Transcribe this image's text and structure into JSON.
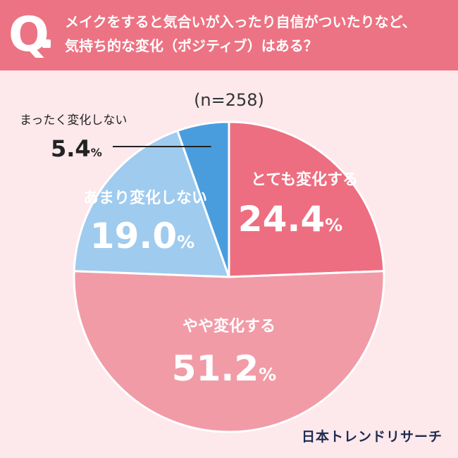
{
  "header": {
    "q_mark": "Q",
    "question_line1": "メイクをすると気合いが入ったり自信がついたりなど、",
    "question_line2": "気持ち的な変化（ポジティブ）はある？"
  },
  "sample_label": "(n=258)",
  "brand_logo": "日本トレンドリサーチ",
  "colors": {
    "background": "#fde8ec",
    "header": "#ec7383",
    "very_changed": "#ed6e80",
    "somewhat_changed": "#f19ba7",
    "not_much": "#9fcbee",
    "no_change": "#4a9ddd"
  },
  "chart_data": {
    "type": "pie",
    "title": "",
    "start_angle_deg": 0,
    "direction": "clockwise",
    "slices": [
      {
        "label": "とても変化する",
        "value": 24.4,
        "display": "24.4",
        "unit": "%",
        "color": "#ed6e80"
      },
      {
        "label": "やや変化する",
        "value": 51.2,
        "display": "51.2",
        "unit": "%",
        "color": "#f19ba7"
      },
      {
        "label": "あまり変化しない",
        "value": 19.0,
        "display": "19.0",
        "unit": "%",
        "color": "#9fcbee"
      },
      {
        "label": "まったく変化しない",
        "value": 5.4,
        "display": "5.4",
        "unit": "%",
        "color": "#4a9ddd"
      }
    ]
  }
}
